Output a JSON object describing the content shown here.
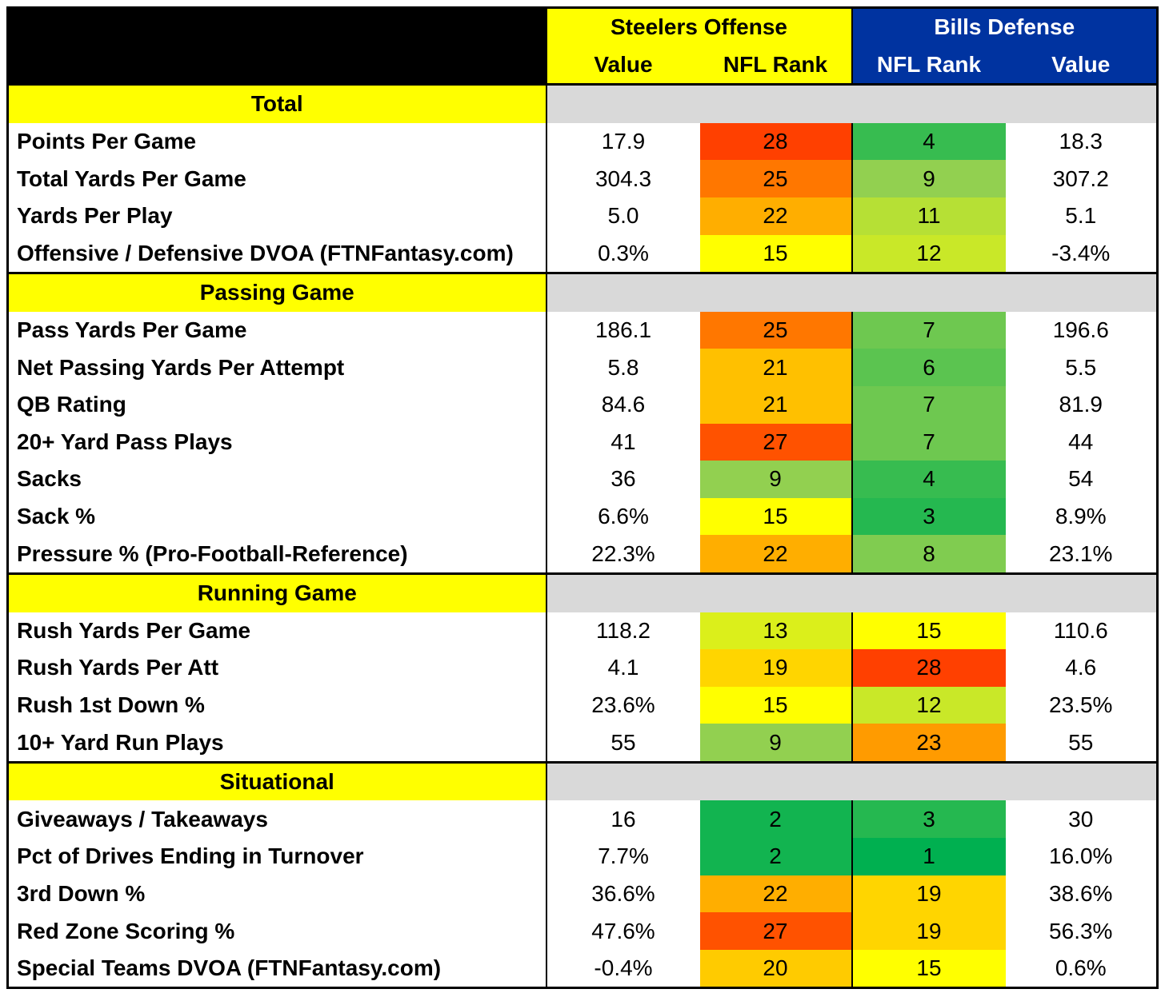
{
  "header": {
    "steelers_title": "Steelers Offense",
    "bills_title": "Bills Defense",
    "col_value": "Value",
    "col_rank": "NFL Rank"
  },
  "colors": {
    "yellow": "#ffff00",
    "blue": "#0033a0",
    "gray": "#d9d9d9"
  },
  "chart_data": {
    "type": "table",
    "columns": [
      "Steelers Offense Value",
      "Steelers Offense NFL Rank",
      "Bills Defense NFL Rank",
      "Bills Defense Value"
    ],
    "sections": [
      {
        "title": "Total",
        "rows": [
          {
            "label": "Points Per Game",
            "off_value": "17.9",
            "off_rank": 28,
            "def_rank": 4,
            "def_value": "18.3"
          },
          {
            "label": "Total Yards Per Game",
            "off_value": "304.3",
            "off_rank": 25,
            "def_rank": 9,
            "def_value": "307.2"
          },
          {
            "label": "Yards Per Play",
            "off_value": "5.0",
            "off_rank": 22,
            "def_rank": 11,
            "def_value": "5.1"
          },
          {
            "label": "Offensive / Defensive DVOA (FTNFantasy.com)",
            "off_value": "0.3%",
            "off_rank": 15,
            "def_rank": 12,
            "def_value": "-3.4%"
          }
        ]
      },
      {
        "title": "Passing Game",
        "rows": [
          {
            "label": "Pass Yards Per Game",
            "off_value": "186.1",
            "off_rank": 25,
            "def_rank": 7,
            "def_value": "196.6"
          },
          {
            "label": "Net Passing Yards Per Attempt",
            "off_value": "5.8",
            "off_rank": 21,
            "def_rank": 6,
            "def_value": "5.5"
          },
          {
            "label": "QB Rating",
            "off_value": "84.6",
            "off_rank": 21,
            "def_rank": 7,
            "def_value": "81.9"
          },
          {
            "label": "20+ Yard Pass Plays",
            "off_value": "41",
            "off_rank": 27,
            "def_rank": 7,
            "def_value": "44"
          },
          {
            "label": "Sacks",
            "off_value": "36",
            "off_rank": 9,
            "def_rank": 4,
            "def_value": "54"
          },
          {
            "label": "Sack %",
            "off_value": "6.6%",
            "off_rank": 15,
            "def_rank": 3,
            "def_value": "8.9%"
          },
          {
            "label": "Pressure % (Pro-Football-Reference)",
            "off_value": "22.3%",
            "off_rank": 22,
            "def_rank": 8,
            "def_value": "23.1%"
          }
        ]
      },
      {
        "title": "Running Game",
        "rows": [
          {
            "label": "Rush Yards Per Game",
            "off_value": "118.2",
            "off_rank": 13,
            "def_rank": 15,
            "def_value": "110.6"
          },
          {
            "label": "Rush Yards Per Att",
            "off_value": "4.1",
            "off_rank": 19,
            "def_rank": 28,
            "def_value": "4.6"
          },
          {
            "label": "Rush 1st Down %",
            "off_value": "23.6%",
            "off_rank": 15,
            "def_rank": 12,
            "def_value": "23.5%"
          },
          {
            "label": "10+ Yard Run Plays",
            "off_value": "55",
            "off_rank": 9,
            "def_rank": 23,
            "def_value": "55"
          }
        ]
      },
      {
        "title": "Situational",
        "rows": [
          {
            "label": "Giveaways / Takeaways",
            "off_value": "16",
            "off_rank": 2,
            "def_rank": 3,
            "def_value": "30"
          },
          {
            "label": "Pct of Drives Ending in Turnover",
            "off_value": "7.7%",
            "off_rank": 2,
            "def_rank": 1,
            "def_value": "16.0%"
          },
          {
            "label": "3rd Down %",
            "off_value": "36.6%",
            "off_rank": 22,
            "def_rank": 19,
            "def_value": "38.6%"
          },
          {
            "label": "Red Zone Scoring %",
            "off_value": "47.6%",
            "off_rank": 27,
            "def_rank": 19,
            "def_value": "56.3%"
          },
          {
            "label": "Special Teams DVOA  (FTNFantasy.com)",
            "off_value": "-0.4%",
            "off_rank": 20,
            "def_rank": 15,
            "def_value": "0.6%"
          }
        ]
      }
    ]
  }
}
